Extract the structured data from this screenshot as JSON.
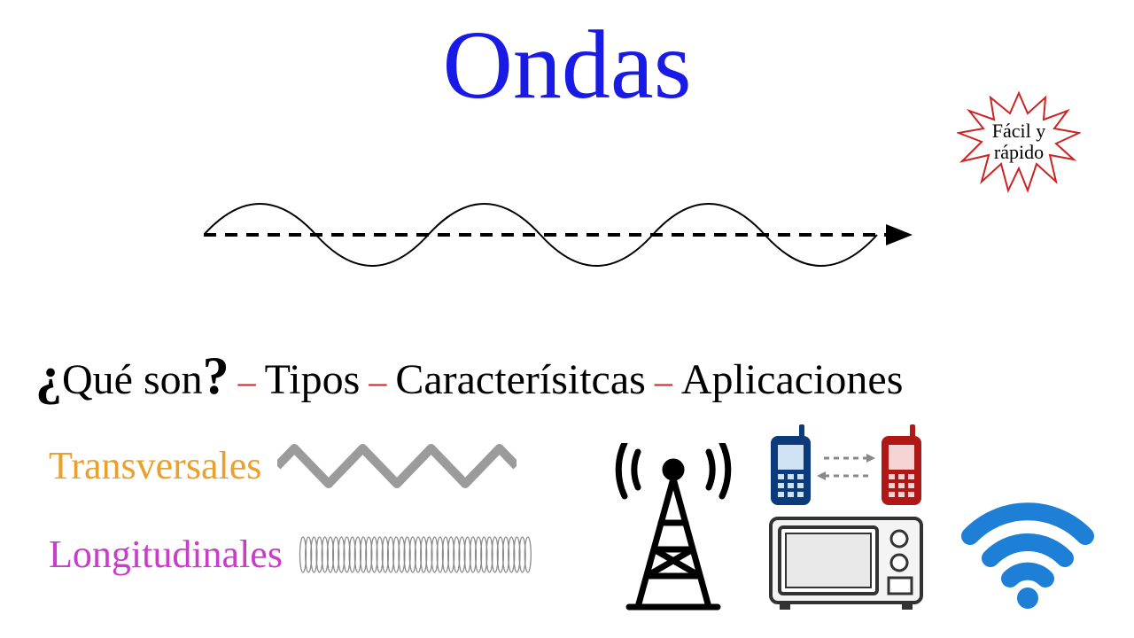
{
  "title": {
    "text": "Ondas",
    "color": "#1a1ae6",
    "fontsize": 110
  },
  "badge": {
    "line1": "Fácil y",
    "line2": "rápido",
    "stroke": "#cc2222",
    "text_color": "#000000"
  },
  "wave": {
    "stroke": "#000000",
    "stroke_width": 2,
    "cycles": 3,
    "arrow_dash": "14 10"
  },
  "subtitle": {
    "question": "Qué son",
    "items": [
      "Tipos",
      "Caracterísitcas",
      "Aplicaciones"
    ],
    "separator": "–",
    "separator_color": "#cc2222",
    "text_color": "#000000"
  },
  "types": {
    "transversales": {
      "label": "Transversales",
      "color": "#e8a12e"
    },
    "longitudinales": {
      "label": "Longitudinales",
      "color": "#c63fc6"
    },
    "spring_color": "#8a8a8a"
  },
  "icons": {
    "antenna_color": "#000000",
    "phone1_color": "#0b3b7a",
    "phone2_color": "#b01818",
    "arrow_color": "#888888",
    "microwave_stroke": "#333333",
    "microwave_fill": "#f4f4f4",
    "wifi_color": "#1e7fd6"
  },
  "background": "#ffffff"
}
